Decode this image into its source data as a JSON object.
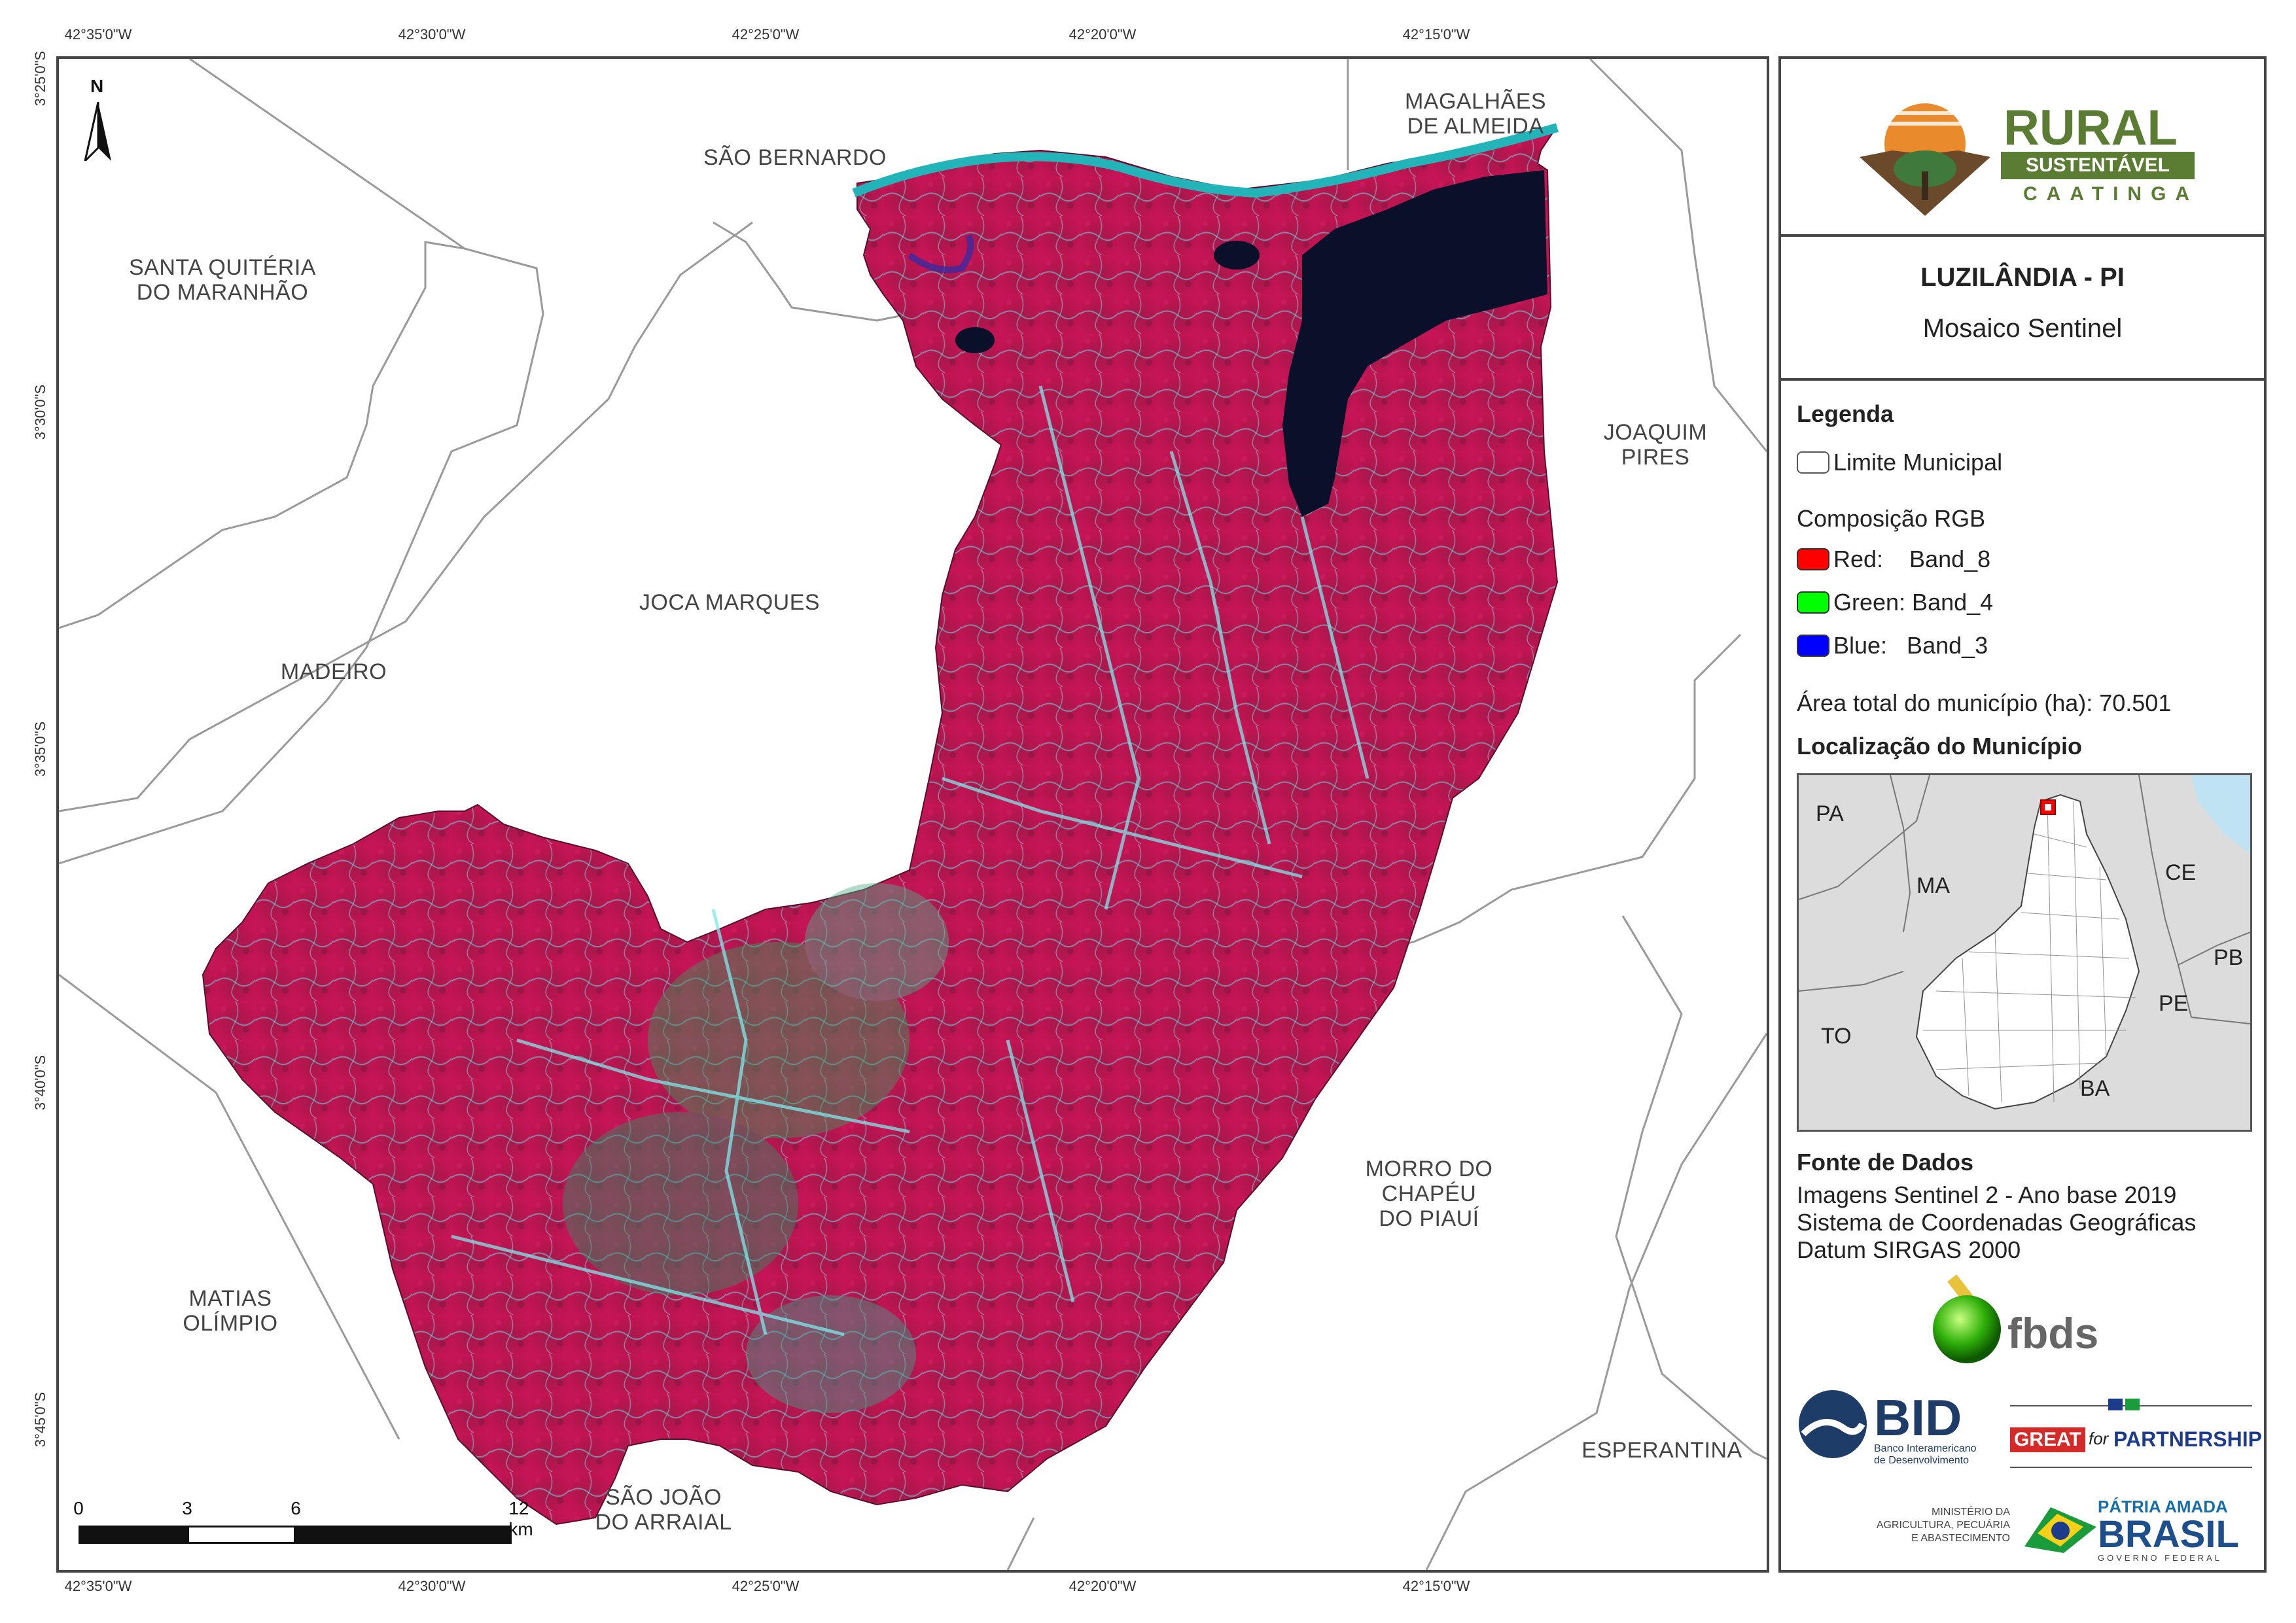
{
  "coords": {
    "top": [
      "42°35'0\"W",
      "42°30'0\"W",
      "42°25'0\"W",
      "42°20'0\"W",
      "42°15'0\"W"
    ],
    "bottom": [
      "42°35'0\"W",
      "42°30'0\"W",
      "42°25'0\"W",
      "42°20'0\"W",
      "42°15'0\"W"
    ],
    "left": [
      "3°25'0\"S",
      "3°30'0\"S",
      "3°35'0\"S",
      "3°40'0\"S",
      "3°45'0\"S"
    ]
  },
  "municipalities": {
    "magalhaes": "MAGALHÃES\nDE ALMEIDA",
    "sao_bernardo": "SÃO BERNARDO",
    "santa_quiteria": "SANTA QUITÉRIA\nDO MARANHÃO",
    "joaquim_pires": "JOAQUIM PIRES",
    "joca_marques": "JOCA MARQUES",
    "madeiro": "MADEIRO",
    "morro_do_chapeu": "MORRO DO\nCHAPÉU\nDO PIAUÍ",
    "matias_olimpio": "MATIAS\nOLÍMPIO",
    "sao_joao_do_arraial": "SÃO JOÃO\nDO ARRAIAL",
    "esperantina": "ESPERANTINA"
  },
  "north_arrow": "N",
  "scale_bar": {
    "labels": [
      "0",
      "3",
      "6",
      "12 km"
    ]
  },
  "logo": {
    "line1": "RURAL",
    "line2": "SUSTENTÁVEL",
    "line3": "CAATINGA"
  },
  "title": {
    "main": "LUZILÂNDIA - PI",
    "sub": "Mosaico Sentinel"
  },
  "legend": {
    "heading": "Legenda",
    "limit": "Limite Municipal",
    "rgb_heading": "Composição RGB",
    "red": "Red:    Band_8",
    "green": "Green: Band_4",
    "blue": "Blue:   Band_3",
    "area": "Área total do município (ha): 70.501",
    "location_heading": "Localização do Município",
    "colors": {
      "red": "#ff0000",
      "green": "#00ff00",
      "blue": "#0000ff"
    }
  },
  "inset": {
    "states": {
      "pa": "PA",
      "ma": "MA",
      "ce": "CE",
      "pb": "PB",
      "pe": "PE",
      "to": "TO",
      "ba": "BA"
    }
  },
  "sources": {
    "heading": "Fonte de Dados",
    "line1": "Imagens Sentinel 2 - Ano base 2019",
    "line2": "Sistema de Coordenadas Geográficas",
    "line3": "Datum SIRGAS 2000"
  },
  "partners": {
    "fbds": "fbds",
    "bid": "BID",
    "bid_sub": "Banco Interamericano\nde Desenvolvimento",
    "great": "GREAT",
    "great_for": "for",
    "partnership": "PARTNERSHIP",
    "ministerio": "MINISTÉRIO DA\nAGRICULTURA, PECUÁRIA\nE ABASTECIMENTO",
    "patria": "PÁTRIA AMADA",
    "brasil": "BRASIL",
    "governo": "GOVERNO FEDERAL"
  }
}
